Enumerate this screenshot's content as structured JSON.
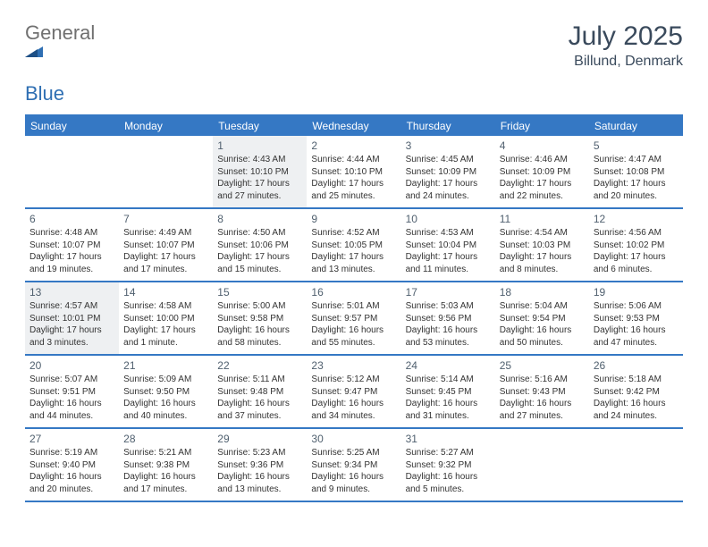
{
  "brand": {
    "word1": "General",
    "word2": "Blue"
  },
  "title": "July 2025",
  "location": "Billund, Denmark",
  "colors": {
    "header_bar": "#3578c4",
    "rule": "#3578c4",
    "shaded_bg": "#eef0f2",
    "title_text": "#3a4a5c",
    "logo_gray": "#707070",
    "logo_blue": "#2f6fb3"
  },
  "weekdays": [
    "Sunday",
    "Monday",
    "Tuesday",
    "Wednesday",
    "Thursday",
    "Friday",
    "Saturday"
  ],
  "weeks": [
    [
      {
        "n": "",
        "shaded": false
      },
      {
        "n": "",
        "shaded": false
      },
      {
        "n": "1",
        "shaded": true,
        "sunrise": "4:43 AM",
        "sunset": "10:10 PM",
        "daylight": "17 hours and 27 minutes."
      },
      {
        "n": "2",
        "shaded": false,
        "sunrise": "4:44 AM",
        "sunset": "10:10 PM",
        "daylight": "17 hours and 25 minutes."
      },
      {
        "n": "3",
        "shaded": false,
        "sunrise": "4:45 AM",
        "sunset": "10:09 PM",
        "daylight": "17 hours and 24 minutes."
      },
      {
        "n": "4",
        "shaded": false,
        "sunrise": "4:46 AM",
        "sunset": "10:09 PM",
        "daylight": "17 hours and 22 minutes."
      },
      {
        "n": "5",
        "shaded": false,
        "sunrise": "4:47 AM",
        "sunset": "10:08 PM",
        "daylight": "17 hours and 20 minutes."
      }
    ],
    [
      {
        "n": "6",
        "shaded": false,
        "sunrise": "4:48 AM",
        "sunset": "10:07 PM",
        "daylight": "17 hours and 19 minutes."
      },
      {
        "n": "7",
        "shaded": false,
        "sunrise": "4:49 AM",
        "sunset": "10:07 PM",
        "daylight": "17 hours and 17 minutes."
      },
      {
        "n": "8",
        "shaded": false,
        "sunrise": "4:50 AM",
        "sunset": "10:06 PM",
        "daylight": "17 hours and 15 minutes."
      },
      {
        "n": "9",
        "shaded": false,
        "sunrise": "4:52 AM",
        "sunset": "10:05 PM",
        "daylight": "17 hours and 13 minutes."
      },
      {
        "n": "10",
        "shaded": false,
        "sunrise": "4:53 AM",
        "sunset": "10:04 PM",
        "daylight": "17 hours and 11 minutes."
      },
      {
        "n": "11",
        "shaded": false,
        "sunrise": "4:54 AM",
        "sunset": "10:03 PM",
        "daylight": "17 hours and 8 minutes."
      },
      {
        "n": "12",
        "shaded": false,
        "sunrise": "4:56 AM",
        "sunset": "10:02 PM",
        "daylight": "17 hours and 6 minutes."
      }
    ],
    [
      {
        "n": "13",
        "shaded": true,
        "sunrise": "4:57 AM",
        "sunset": "10:01 PM",
        "daylight": "17 hours and 3 minutes."
      },
      {
        "n": "14",
        "shaded": false,
        "sunrise": "4:58 AM",
        "sunset": "10:00 PM",
        "daylight": "17 hours and 1 minute."
      },
      {
        "n": "15",
        "shaded": false,
        "sunrise": "5:00 AM",
        "sunset": "9:58 PM",
        "daylight": "16 hours and 58 minutes."
      },
      {
        "n": "16",
        "shaded": false,
        "sunrise": "5:01 AM",
        "sunset": "9:57 PM",
        "daylight": "16 hours and 55 minutes."
      },
      {
        "n": "17",
        "shaded": false,
        "sunrise": "5:03 AM",
        "sunset": "9:56 PM",
        "daylight": "16 hours and 53 minutes."
      },
      {
        "n": "18",
        "shaded": false,
        "sunrise": "5:04 AM",
        "sunset": "9:54 PM",
        "daylight": "16 hours and 50 minutes."
      },
      {
        "n": "19",
        "shaded": false,
        "sunrise": "5:06 AM",
        "sunset": "9:53 PM",
        "daylight": "16 hours and 47 minutes."
      }
    ],
    [
      {
        "n": "20",
        "shaded": false,
        "sunrise": "5:07 AM",
        "sunset": "9:51 PM",
        "daylight": "16 hours and 44 minutes."
      },
      {
        "n": "21",
        "shaded": false,
        "sunrise": "5:09 AM",
        "sunset": "9:50 PM",
        "daylight": "16 hours and 40 minutes."
      },
      {
        "n": "22",
        "shaded": false,
        "sunrise": "5:11 AM",
        "sunset": "9:48 PM",
        "daylight": "16 hours and 37 minutes."
      },
      {
        "n": "23",
        "shaded": false,
        "sunrise": "5:12 AM",
        "sunset": "9:47 PM",
        "daylight": "16 hours and 34 minutes."
      },
      {
        "n": "24",
        "shaded": false,
        "sunrise": "5:14 AM",
        "sunset": "9:45 PM",
        "daylight": "16 hours and 31 minutes."
      },
      {
        "n": "25",
        "shaded": false,
        "sunrise": "5:16 AM",
        "sunset": "9:43 PM",
        "daylight": "16 hours and 27 minutes."
      },
      {
        "n": "26",
        "shaded": false,
        "sunrise": "5:18 AM",
        "sunset": "9:42 PM",
        "daylight": "16 hours and 24 minutes."
      }
    ],
    [
      {
        "n": "27",
        "shaded": false,
        "sunrise": "5:19 AM",
        "sunset": "9:40 PM",
        "daylight": "16 hours and 20 minutes."
      },
      {
        "n": "28",
        "shaded": false,
        "sunrise": "5:21 AM",
        "sunset": "9:38 PM",
        "daylight": "16 hours and 17 minutes."
      },
      {
        "n": "29",
        "shaded": false,
        "sunrise": "5:23 AM",
        "sunset": "9:36 PM",
        "daylight": "16 hours and 13 minutes."
      },
      {
        "n": "30",
        "shaded": false,
        "sunrise": "5:25 AM",
        "sunset": "9:34 PM",
        "daylight": "16 hours and 9 minutes."
      },
      {
        "n": "31",
        "shaded": false,
        "sunrise": "5:27 AM",
        "sunset": "9:32 PM",
        "daylight": "16 hours and 5 minutes."
      },
      {
        "n": "",
        "shaded": false
      },
      {
        "n": "",
        "shaded": false
      }
    ]
  ]
}
